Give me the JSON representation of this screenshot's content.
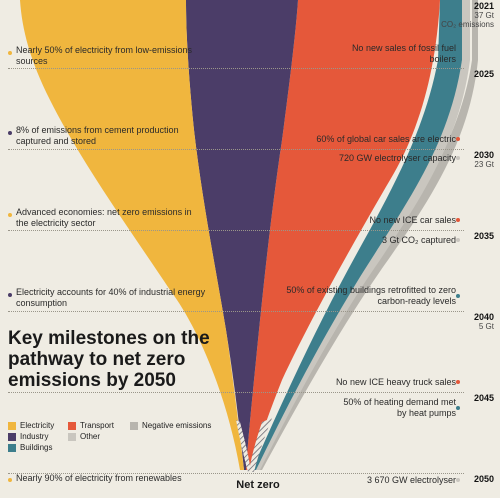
{
  "title": "Key milestones on the pathway to net zero emissions by 2050",
  "net_zero_label": "Net zero",
  "colors": {
    "electricity": "#f0b63e",
    "industry": "#4b3d68",
    "transport": "#e5583a",
    "buildings": "#3d7e8c",
    "other": "#c9c6bf",
    "negative": "#b8b5ae",
    "background": "#efece3"
  },
  "legend": [
    {
      "key": "electricity",
      "label": "Electricity"
    },
    {
      "key": "transport",
      "label": "Transport"
    },
    {
      "key": "negative",
      "label": "Negative emissions"
    },
    {
      "key": "industry",
      "label": "Industry"
    },
    {
      "key": "other",
      "label": "Other"
    },
    {
      "key": "buildings",
      "label": "Buildings"
    }
  ],
  "years": [
    {
      "year": "2021",
      "value": "37 Gt",
      "note": "CO₂ emissions"
    },
    {
      "year": "2025",
      "value": "",
      "note": ""
    },
    {
      "year": "2030",
      "value": "23 Gt",
      "note": ""
    },
    {
      "year": "2035",
      "value": "",
      "note": ""
    },
    {
      "year": "2040",
      "value": "5 Gt",
      "note": ""
    },
    {
      "year": "2045",
      "value": "",
      "note": ""
    },
    {
      "year": "2050",
      "value": "",
      "note": ""
    }
  ],
  "milestones_left": [
    {
      "text": "Nearly 50% of electricity from low-emissions sources",
      "sector": "electricity"
    },
    {
      "text": "8% of emissions from cement production captured and stored",
      "sector": "industry"
    },
    {
      "text": "Advanced economies: net zero emissions in the electricity sector",
      "sector": "electricity"
    },
    {
      "text": "Electricity accounts for 40% of industrial energy consumption",
      "sector": "industry"
    },
    {
      "text": "Nearly 90% of electricity from renewables",
      "sector": "electricity"
    }
  ],
  "milestones_right": [
    {
      "text": "No new sales of fossil fuel boilers",
      "sector": "buildings"
    },
    {
      "text": "60% of global car sales are electric",
      "sector": "transport"
    },
    {
      "text": "720 GW electrolyser capacity",
      "sector": "other"
    },
    {
      "text": "No new ICE car sales",
      "sector": "transport"
    },
    {
      "text": "3 Gt CO₂ captured",
      "sector": "other"
    },
    {
      "text": "50% of existing buildings retrofitted to zero carbon-ready levels",
      "sector": "buildings"
    },
    {
      "text": "No new ICE heavy truck sales",
      "sector": "transport"
    },
    {
      "text": "50% of heating demand met by heat pumps",
      "sector": "buildings"
    },
    {
      "text": "3 670 GW electrolyser",
      "sector": "other"
    }
  ]
}
